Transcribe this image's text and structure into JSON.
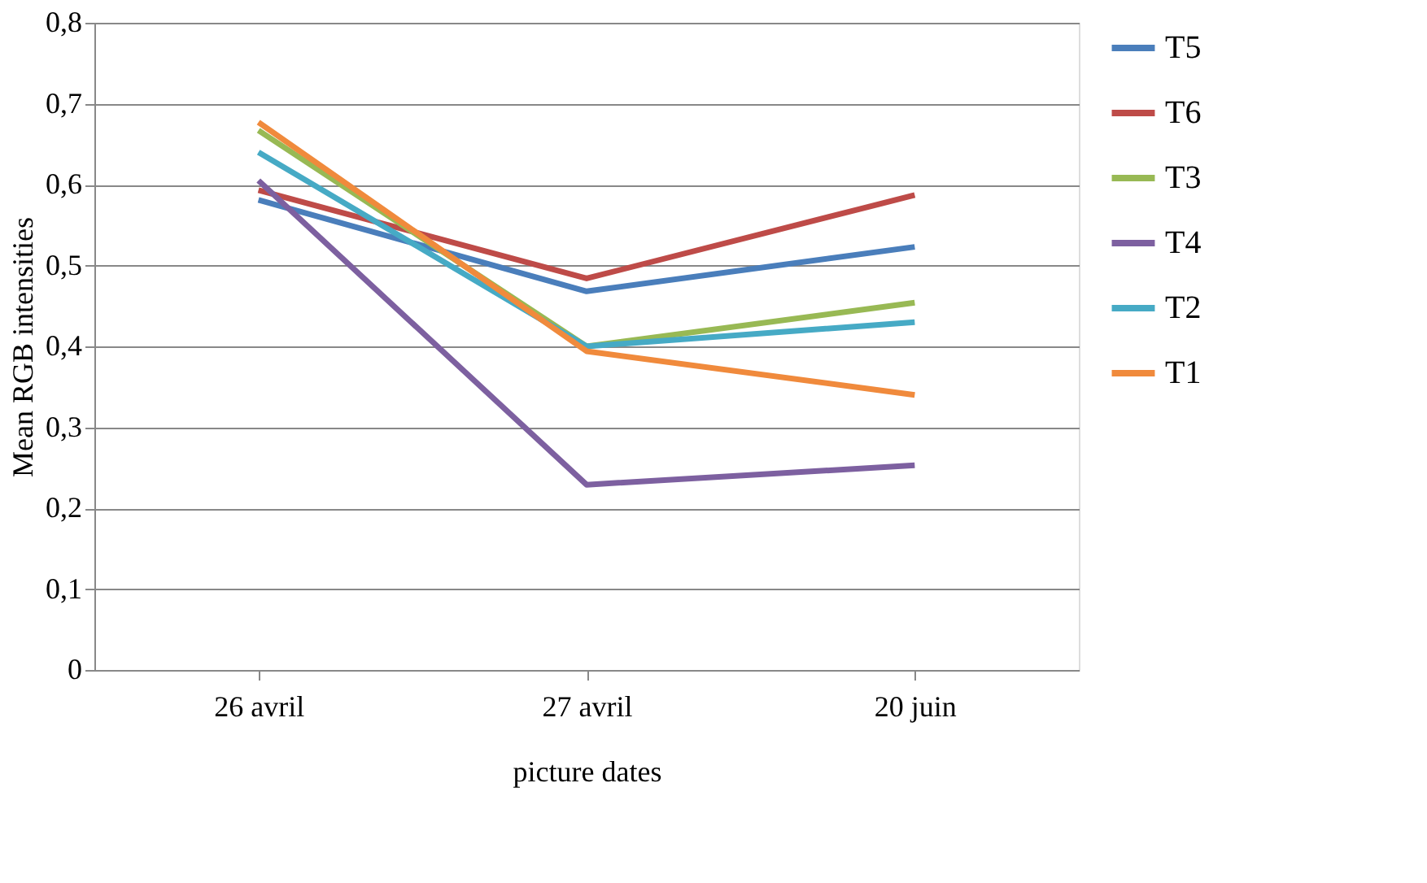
{
  "chart_data": {
    "type": "line",
    "xlabel": "picture dates",
    "ylabel": "Mean RGB intensities",
    "categories": [
      "26 avril",
      "27 avril",
      "20 juin"
    ],
    "series": [
      {
        "name": "T5",
        "color": "#4a7ebb",
        "values": [
          0.581,
          0.468,
          0.523
        ]
      },
      {
        "name": "T6",
        "color": "#be4b48",
        "values": [
          0.593,
          0.484,
          0.587
        ]
      },
      {
        "name": "T3",
        "color": "#98b954",
        "values": [
          0.667,
          0.4,
          0.454
        ]
      },
      {
        "name": "T4",
        "color": "#7d60a0",
        "values": [
          0.605,
          0.229,
          0.253
        ]
      },
      {
        "name": "T2",
        "color": "#46aac5",
        "values": [
          0.64,
          0.4,
          0.43
        ]
      },
      {
        "name": "T1",
        "color": "#f08a3c",
        "values": [
          0.677,
          0.394,
          0.34
        ]
      }
    ],
    "ylim": [
      0,
      0.8
    ],
    "yticks": [
      0,
      {
        "value": 0.1,
        "label": "0,1"
      },
      {
        "value": 0.2,
        "label": "0,2"
      },
      {
        "value": 0.3,
        "label": "0,3"
      },
      {
        "value": 0.4,
        "label": "0,4"
      },
      {
        "value": 0.5,
        "label": "0,5"
      },
      {
        "value": 0.6,
        "label": "0,6"
      },
      {
        "value": 0.7,
        "label": "0,7"
      },
      {
        "value": 0.8,
        "label": "0,8"
      }
    ],
    "grid": "y",
    "legend": "right",
    "marker": "none",
    "line_style": "solid"
  }
}
